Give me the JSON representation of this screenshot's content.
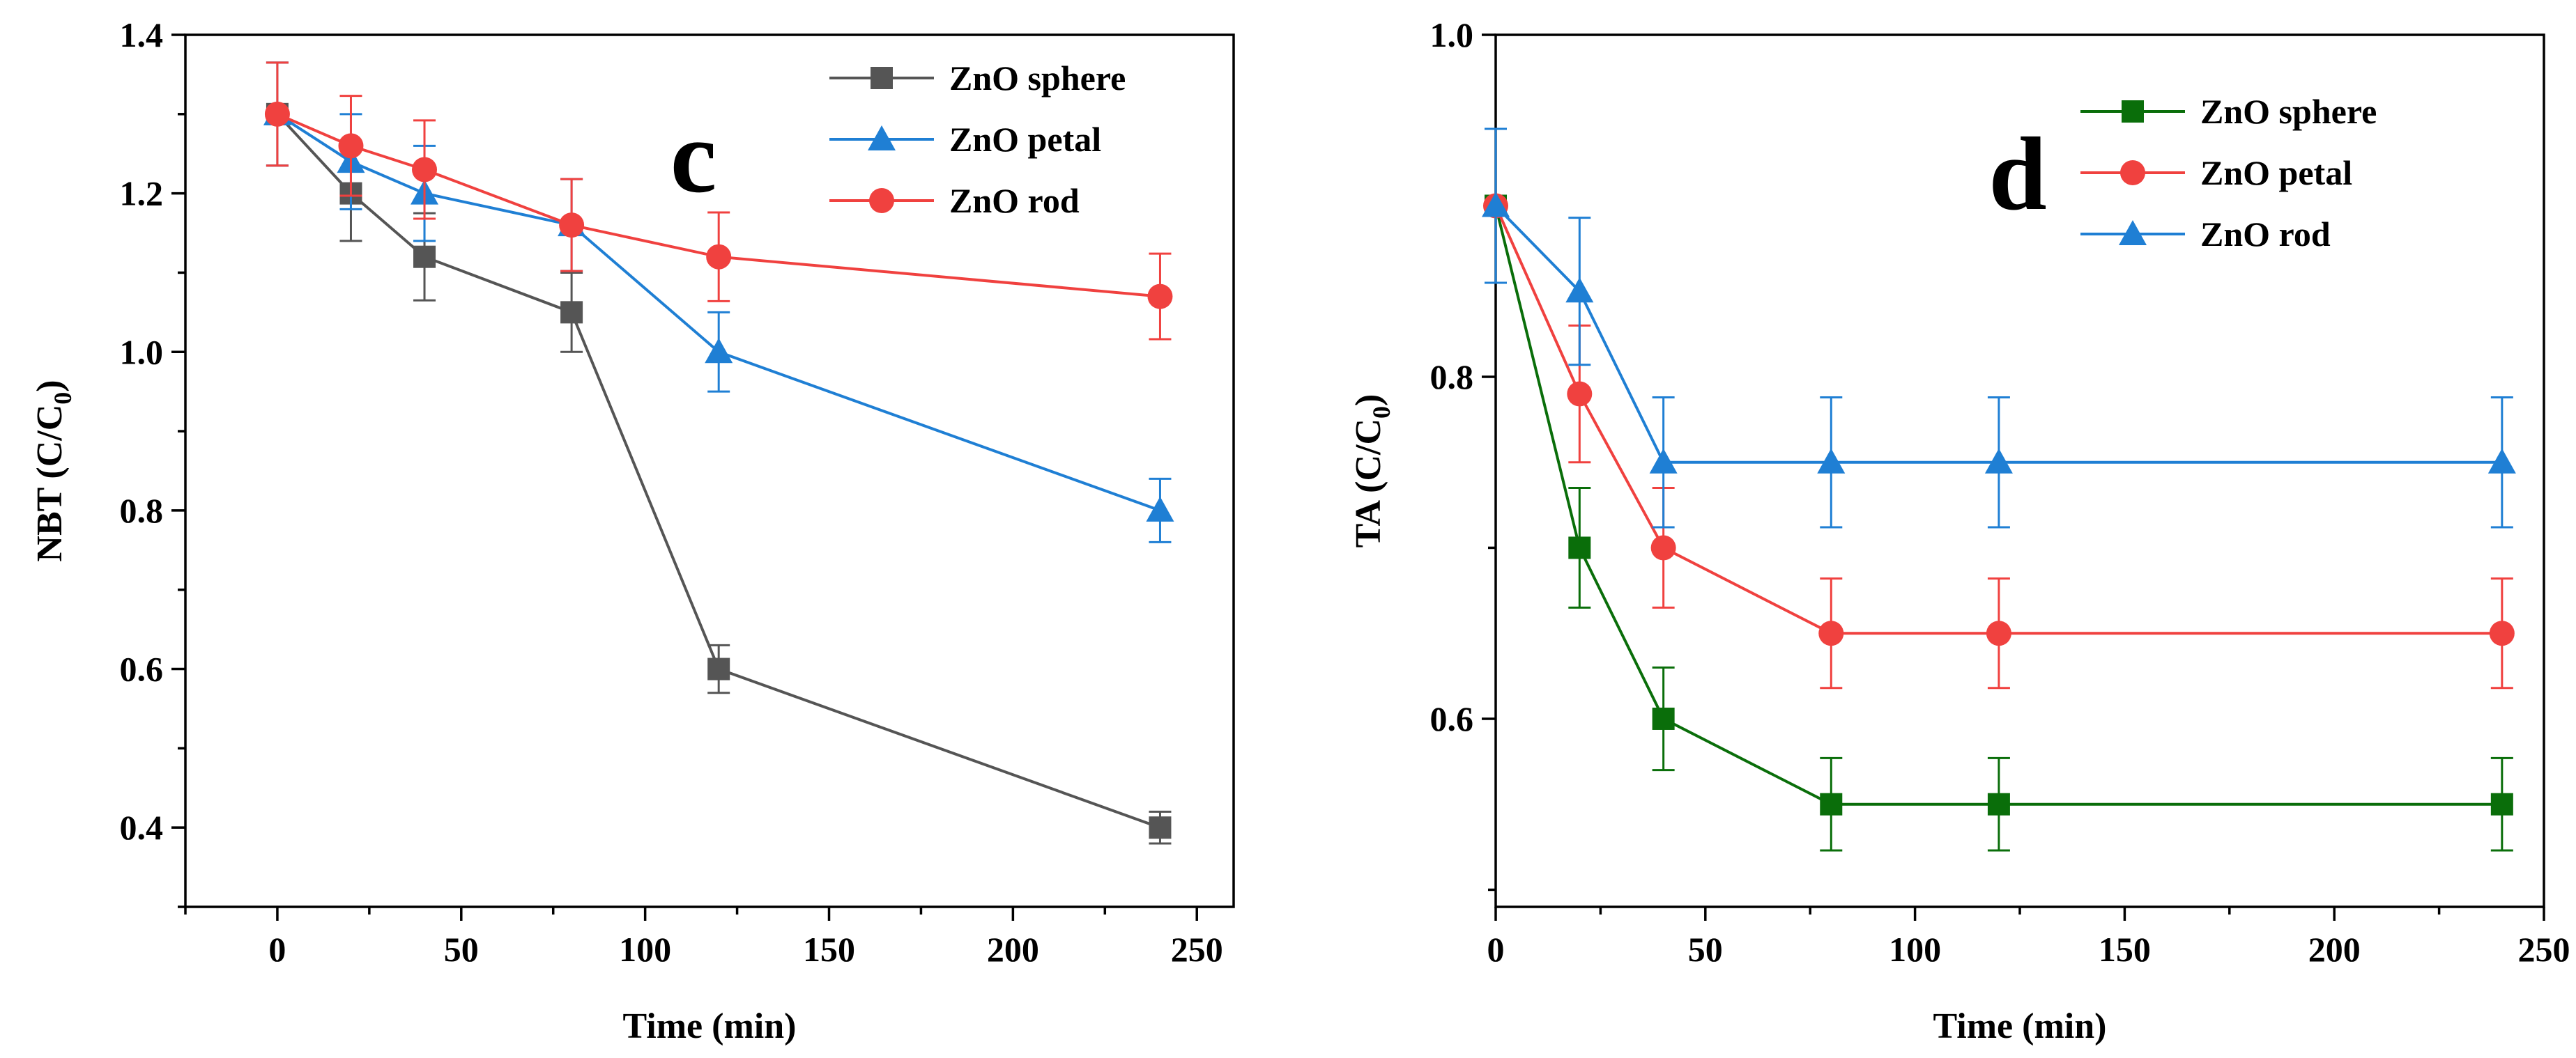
{
  "chart_data": [
    {
      "type": "line",
      "panel": "c",
      "xlabel": "Time (min)",
      "ylabel": "NBT (C/C",
      "ylabel_sub": "0",
      "ylabel_end": ")",
      "xlim": [
        -25,
        260
      ],
      "ylim": [
        0.3,
        1.4
      ],
      "xticks": [
        0,
        50,
        100,
        150,
        200,
        250
      ],
      "xtick_labels": [
        "0",
        "50",
        "100",
        "150",
        "200",
        "250"
      ],
      "yticks": [
        0.4,
        0.6,
        0.8,
        1.0,
        1.2,
        1.4
      ],
      "ytick_labels": [
        "0.4",
        "0.6",
        "0.8",
        "1.0",
        "1.2",
        "1.4"
      ],
      "legend_position": "top-right",
      "series": [
        {
          "name": "ZnO sphere",
          "color": "#555555",
          "marker": "square",
          "x": [
            0,
            20,
            40,
            80,
            120,
            240
          ],
          "values": [
            1.3,
            1.2,
            1.12,
            1.05,
            0.6,
            0.4
          ],
          "errors": [
            0.065,
            0.06,
            0.055,
            0.05,
            0.03,
            0.02
          ]
        },
        {
          "name": "ZnO petal",
          "color": "#1f7fd4",
          "marker": "triangle",
          "x": [
            0,
            20,
            40,
            80,
            120,
            240
          ],
          "values": [
            1.3,
            1.24,
            1.2,
            1.16,
            1.0,
            0.8
          ],
          "errors": [
            0.065,
            0.06,
            0.06,
            0.058,
            0.05,
            0.04
          ]
        },
        {
          "name": "ZnO rod",
          "color": "#f0413f",
          "marker": "circle",
          "x": [
            0,
            20,
            40,
            80,
            120,
            240
          ],
          "values": [
            1.3,
            1.26,
            1.23,
            1.16,
            1.12,
            1.07
          ],
          "errors": [
            0.065,
            0.063,
            0.062,
            0.058,
            0.056,
            0.054
          ]
        }
      ]
    },
    {
      "type": "line",
      "panel": "d",
      "xlabel": "Time (min)",
      "ylabel": "TA (C/C",
      "ylabel_sub": "0",
      "ylabel_end": ")",
      "xlim": [
        0,
        250
      ],
      "ylim": [
        0.49,
        1.0
      ],
      "xticks": [
        0,
        50,
        100,
        150,
        200,
        250
      ],
      "xtick_labels": [
        "0",
        "50",
        "100",
        "150",
        "200",
        "250"
      ],
      "yticks": [
        0.6,
        0.8,
        1.0
      ],
      "ytick_labels": [
        "0.6",
        "0.8",
        "1.0"
      ],
      "legend_position": "top-right",
      "series": [
        {
          "name": "ZnO sphere",
          "color": "#0a6e0a",
          "marker": "square",
          "x": [
            0,
            20,
            40,
            80,
            120,
            240
          ],
          "values": [
            0.9,
            0.7,
            0.6,
            0.55,
            0.55,
            0.55
          ],
          "errors": [
            0.045,
            0.035,
            0.03,
            0.027,
            0.027,
            0.027
          ]
        },
        {
          "name": "ZnO petal",
          "color": "#f0413f",
          "marker": "circle",
          "x": [
            0,
            20,
            40,
            80,
            120,
            240
          ],
          "values": [
            0.9,
            0.79,
            0.7,
            0.65,
            0.65,
            0.65
          ],
          "errors": [
            0.045,
            0.04,
            0.035,
            0.032,
            0.032,
            0.032
          ]
        },
        {
          "name": "ZnO rod",
          "color": "#1f7fd4",
          "marker": "triangle",
          "x": [
            0,
            20,
            40,
            80,
            120,
            240
          ],
          "values": [
            0.9,
            0.85,
            0.75,
            0.75,
            0.75,
            0.75
          ],
          "errors": [
            0.045,
            0.043,
            0.038,
            0.038,
            0.038,
            0.038
          ]
        }
      ]
    }
  ]
}
